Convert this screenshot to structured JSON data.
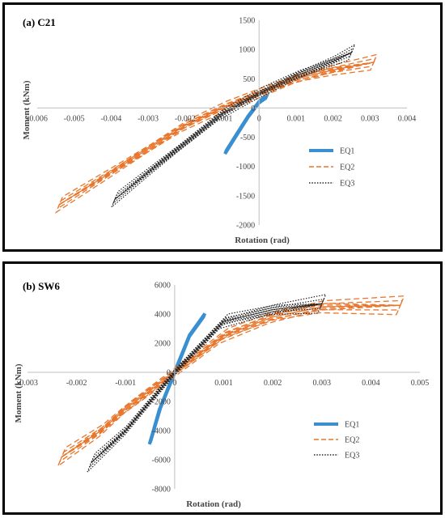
{
  "chart_data": [
    {
      "type": "line",
      "title": "(a) C21",
      "xlabel": "Rotation (rad)",
      "ylabel": "Moment (kNm)",
      "xlim": [
        -0.006,
        0.004
      ],
      "ylim": [
        -2000,
        1500
      ],
      "x_ticks": [
        "-0.006",
        "-0.005",
        "-0.004",
        "-0.003",
        "-0.002",
        "-0.001",
        "0",
        "0.001",
        "0.002",
        "0.003",
        "0.004"
      ],
      "y_ticks": [
        "1500",
        "1000",
        "500",
        "0",
        "-500",
        "-1000",
        "-1500",
        "-2000"
      ],
      "grid": false,
      "legend_position": "center-right",
      "series": [
        {
          "name": "EQ1",
          "color": "#3a8fd1",
          "style": "solid",
          "x": [
            -0.0009,
            -0.0006,
            -0.0003,
            0,
            0.0002
          ],
          "y": [
            -750,
            -450,
            -150,
            100,
            200
          ]
        },
        {
          "name": "EQ2",
          "color": "#e8762c",
          "style": "dashed",
          "x": [
            -0.0054,
            -0.004,
            -0.003,
            -0.002,
            -0.001,
            0,
            0.001,
            0.002,
            0.0031
          ],
          "y": [
            -1650,
            -1100,
            -700,
            -300,
            0,
            250,
            500,
            650,
            780
          ]
        },
        {
          "name": "EQ3",
          "color": "#222222",
          "style": "dotted",
          "x": [
            -0.0039,
            -0.003,
            -0.002,
            -0.001,
            0,
            0.001,
            0.002,
            0.0025
          ],
          "y": [
            -1560,
            -1100,
            -600,
            -100,
            250,
            550,
            800,
            950
          ]
        }
      ]
    },
    {
      "type": "line",
      "title": "(b) SW6",
      "xlabel": "Rotation (rad)",
      "ylabel": "Moment (kNm)",
      "xlim": [
        -0.003,
        0.005
      ],
      "ylim": [
        -8000,
        6000
      ],
      "x_ticks": [
        "-0.003",
        "-0.002",
        "-0.001",
        "0",
        "0.001",
        "0.002",
        "0.003",
        "0.004",
        "0.005"
      ],
      "y_ticks": [
        "6000",
        "4000",
        "2000",
        "0",
        "-2000",
        "-4000",
        "-6000",
        "-8000"
      ],
      "grid": false,
      "legend_position": "bottom-right",
      "series": [
        {
          "name": "EQ1",
          "color": "#3a8fd1",
          "style": "solid",
          "x": [
            -0.0005,
            -0.0003,
            0,
            0.0003,
            0.0006
          ],
          "y": [
            -4800,
            -2500,
            0,
            2500,
            3900
          ]
        },
        {
          "name": "EQ2",
          "color": "#e8762c",
          "style": "dashed",
          "x": [
            -0.0023,
            -0.0015,
            -0.001,
            0,
            0.001,
            0.002,
            0.003,
            0.0046
          ],
          "y": [
            -5800,
            -4000,
            -2500,
            0,
            2500,
            3800,
            4500,
            4600
          ]
        },
        {
          "name": "EQ3",
          "color": "#222222",
          "style": "dotted",
          "x": [
            -0.0017,
            -0.001,
            0,
            0.001,
            0.002,
            0.003
          ],
          "y": [
            -6200,
            -4000,
            0,
            3500,
            4300,
            4700
          ]
        }
      ]
    }
  ]
}
